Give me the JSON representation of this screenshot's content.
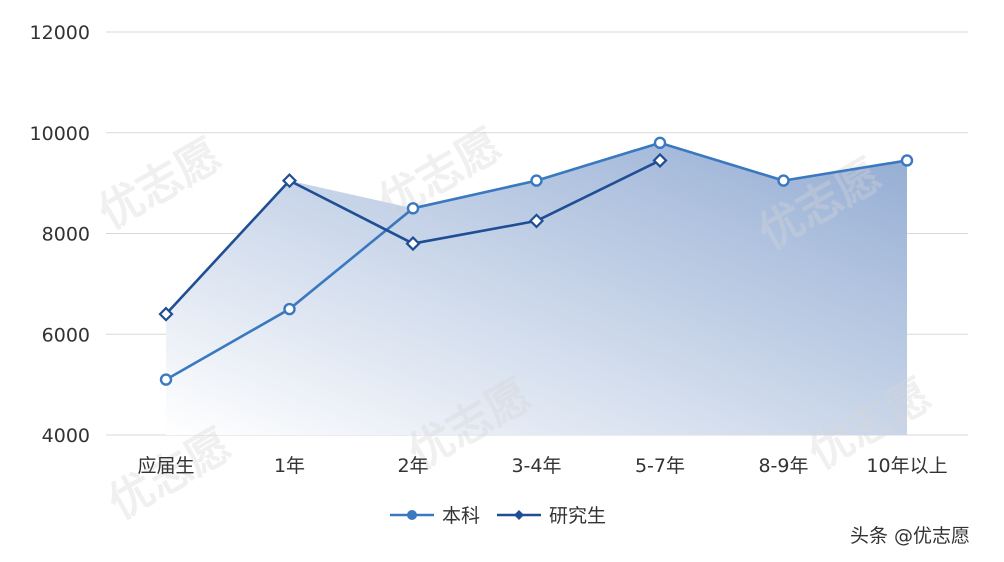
{
  "chart_data": {
    "type": "line",
    "categories": [
      "应届生",
      "1年",
      "2年",
      "3-4年",
      "5-7年",
      "8-9年",
      "10年以上"
    ],
    "ylim": [
      4000,
      12000
    ],
    "yticks": [
      4000,
      6000,
      8000,
      10000,
      12000
    ],
    "grid": true,
    "legend_position": "bottom",
    "series": [
      {
        "name": "本科",
        "values": [
          5100,
          6500,
          8500,
          9050,
          9800,
          9050,
          9450
        ],
        "marker": "circle"
      },
      {
        "name": "研究生",
        "values": [
          6400,
          9050,
          7800,
          8250,
          9450,
          null,
          null
        ],
        "marker": "diamond"
      }
    ],
    "area_fill": {
      "colors": [
        "#ffffff",
        "#93acd3"
      ]
    }
  },
  "colors": {
    "line1": "#3a78c0",
    "line2": "#1f4e94",
    "grid": "#d9d9d9",
    "text": "#333333"
  },
  "watermark": {
    "brand": "优志愿",
    "credit": "头条 @优志愿"
  }
}
